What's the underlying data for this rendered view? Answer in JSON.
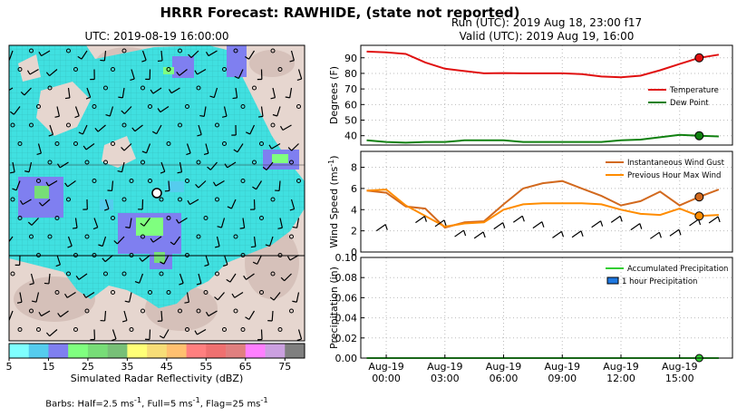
{
  "suptitle": "HRRR Forecast: RAWHIDE, (state not reported)",
  "map": {
    "title": "UTC: 2019-08-19 16:00:00",
    "colorbar_label": "Simulated Radar Reflectivity (dBZ)",
    "colorbar_ticks": [
      "5",
      "15",
      "25",
      "35",
      "45",
      "55",
      "65",
      "75"
    ],
    "colorbar_colors": [
      "#7fffff",
      "#55ccee",
      "#7f7ff0",
      "#7fff7f",
      "#77dd77",
      "#77c077",
      "#ffff77",
      "#f7dd77",
      "#ffc070",
      "#ff7f7f",
      "#ef7070",
      "#e07f7f",
      "#ff7fff",
      "#cba0e0",
      "#7f7f7f"
    ],
    "barbs_note_prefix": "Barbs: Half=2.5 ms",
    "barbs_note_middle": ", Full=5 ms",
    "barbs_note_suffix": ", Flag=25 ms",
    "superscript": "-1"
  },
  "run_text": "Run (UTC): 2019 Aug 18, 23:00 f17",
  "valid_text": "Valid (UTC): 2019 Aug 19, 16:00",
  "colors": {
    "temperature": "#e01010",
    "dew_point": "#108010",
    "gust": "#d2691e",
    "max_wind": "#ff8c00",
    "precip_line": "#32cd32",
    "precip_bar": "#1e78e0"
  },
  "x_axis": {
    "ticks": [
      {
        "h": 0,
        "date": "Aug-19",
        "time": "00:00"
      },
      {
        "h": 3,
        "date": "Aug-19",
        "time": "03:00"
      },
      {
        "h": 6,
        "date": "Aug-19",
        "time": "06:00"
      },
      {
        "h": 9,
        "date": "Aug-19",
        "time": "09:00"
      },
      {
        "h": 12,
        "date": "Aug-19",
        "time": "12:00"
      },
      {
        "h": 15,
        "date": "Aug-19",
        "time": "15:00"
      }
    ]
  },
  "chart_data": [
    {
      "type": "line",
      "ylabel": "Degrees (F)",
      "ylim": [
        34,
        98
      ],
      "yticks": [
        40,
        50,
        60,
        70,
        80,
        90
      ],
      "x_hours": [
        -1,
        0,
        1,
        2,
        3,
        4,
        5,
        6,
        7,
        8,
        9,
        10,
        11,
        12,
        13,
        14,
        15,
        16,
        17
      ],
      "series": [
        {
          "name": "Temperature",
          "values": [
            94,
            93.5,
            92.5,
            87,
            83,
            81.5,
            80,
            80.2,
            80,
            80,
            80,
            79.5,
            78,
            77.5,
            78.5,
            82,
            86,
            90,
            92
          ]
        },
        {
          "name": "Dew Point",
          "values": [
            37,
            36,
            35.5,
            36,
            36,
            37,
            37,
            37,
            36,
            36,
            36,
            36,
            36,
            37,
            37.5,
            39,
            40.5,
            40,
            39.5
          ]
        }
      ],
      "legend": "right",
      "grid": true
    },
    {
      "type": "line",
      "ylabel": "Wind Speed (ms",
      "ylabel_suffix": ")",
      "ylim": [
        0,
        9.5
      ],
      "yticks": [
        0,
        2,
        4,
        6,
        8
      ],
      "x_hours": [
        -1,
        0,
        1,
        2,
        3,
        4,
        5,
        6,
        7,
        8,
        9,
        10,
        11,
        12,
        13,
        14,
        15,
        16,
        17
      ],
      "series": [
        {
          "name": "Instantaneous Wind Gust",
          "values": [
            5.8,
            5.6,
            4.3,
            4.1,
            2.3,
            2.8,
            2.9,
            4.5,
            6.0,
            6.5,
            6.7,
            6.0,
            5.3,
            4.4,
            4.8,
            5.7,
            4.4,
            5.2,
            5.9
          ]
        },
        {
          "name": "Previous Hour Max Wind",
          "values": [
            5.8,
            5.9,
            4.4,
            3.4,
            2.4,
            2.7,
            2.8,
            4.0,
            4.5,
            4.6,
            4.6,
            4.6,
            4.5,
            4.0,
            3.6,
            3.5,
            4.1,
            3.4,
            3.5
          ]
        }
      ],
      "barb_hours": [
        -0.5,
        1.5,
        2.5,
        3.5,
        4.5,
        5.5,
        6.5,
        7.5,
        8.5,
        9.5,
        10.5,
        11.5,
        12.5,
        13.5,
        14.5,
        15.5,
        16.5
      ],
      "legend": "top-right",
      "grid": true
    },
    {
      "type": "line",
      "ylabel": "Precipitation (in)",
      "ylim": [
        0,
        0.1
      ],
      "yticks": [
        "0.00",
        "0.02",
        "0.04",
        "0.06",
        "0.08",
        "0.10"
      ],
      "x_hours": [
        -1,
        17
      ],
      "series": [
        {
          "name": "Accumulated Precipitation",
          "values": [
            0,
            0
          ]
        },
        {
          "name": "1 hour Precipitation",
          "values": [
            0,
            0
          ]
        }
      ],
      "legend": "top-right",
      "grid": true
    }
  ]
}
